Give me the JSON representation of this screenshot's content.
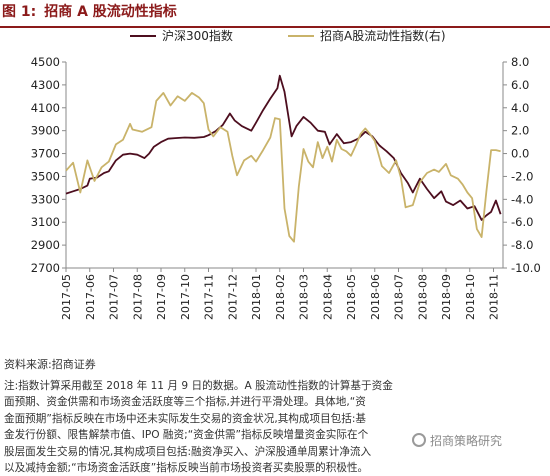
{
  "figure_label": "图 1:",
  "figure_title": "招商 A 股流动性指标",
  "source": "资料来源:招商证券",
  "note_lines": [
    "注:指数计算采用截至 2018 年 11 月 9 日的数据。A 股流动性指数的计算基于资金",
    "面预期、资金供需和市场资金活跃度等三个指标,并进行平滑处理。具体地,“资",
    "金面预期”指标反映在市场中还未实际发生交易的资金状况,其构成项目包括:基",
    "金发行份额、限售解禁市值、IPO 融资;“资金供需”指标反映增量资金实际在个",
    "股层面发生交易的情况,其构成项目包括:融资净买入、沪深股通单周累计净流入",
    "以及减持金额;“市场资金活跃度”指标反映当前市场投资者买卖股票的积极性。"
  ],
  "watermark": "招商策略研究",
  "chart_data": {
    "type": "line",
    "legend_placement": "top",
    "grid": false,
    "x_categories": [
      "2017-05",
      "2017-06",
      "2017-07",
      "2017-08",
      "2017-09",
      "2017-10",
      "2017-11",
      "2017-12",
      "2018-01",
      "2018-02",
      "2018-03",
      "2018-04",
      "2018-05",
      "2018-06",
      "2018-07",
      "2018-08",
      "2018-09",
      "2018-10",
      "2018-11"
    ],
    "x_domain": [
      0,
      18.4
    ],
    "y_left": {
      "ticks": [
        2700,
        2900,
        3100,
        3300,
        3500,
        3700,
        3900,
        4100,
        4300,
        4500
      ],
      "range": [
        2700,
        4500
      ]
    },
    "y_right": {
      "ticks": [
        "8.0",
        "6.0",
        "4.0",
        "2.0",
        "0.0",
        "-2.0",
        "-4.0",
        "-6.0",
        "-8.0",
        "-10.0"
      ],
      "range": [
        -10,
        8
      ]
    },
    "series": [
      {
        "name": "沪深300指数",
        "axis": "left",
        "color": "#4d0e1f",
        "points": [
          [
            0,
            3350
          ],
          [
            0.3,
            3370
          ],
          [
            0.6,
            3390
          ],
          [
            0.9,
            3420
          ],
          [
            1.0,
            3480
          ],
          [
            1.3,
            3490
          ],
          [
            1.6,
            3530
          ],
          [
            1.8,
            3545
          ],
          [
            2.1,
            3640
          ],
          [
            2.4,
            3690
          ],
          [
            2.7,
            3700
          ],
          [
            3.0,
            3690
          ],
          [
            3.3,
            3660
          ],
          [
            3.5,
            3700
          ],
          [
            3.7,
            3760
          ],
          [
            4.0,
            3800
          ],
          [
            4.3,
            3830
          ],
          [
            4.6,
            3835
          ],
          [
            5.0,
            3840
          ],
          [
            5.4,
            3838
          ],
          [
            5.8,
            3845
          ],
          [
            6.0,
            3860
          ],
          [
            6.3,
            3895
          ],
          [
            6.6,
            3950
          ],
          [
            6.9,
            4050
          ],
          [
            7.1,
            3990
          ],
          [
            7.4,
            3940
          ],
          [
            7.8,
            3900
          ],
          [
            8.0,
            3970
          ],
          [
            8.3,
            4080
          ],
          [
            8.6,
            4180
          ],
          [
            8.9,
            4270
          ],
          [
            9.0,
            4380
          ],
          [
            9.2,
            4240
          ],
          [
            9.5,
            3850
          ],
          [
            9.7,
            3940
          ],
          [
            10.0,
            4020
          ],
          [
            10.3,
            3970
          ],
          [
            10.6,
            3900
          ],
          [
            10.9,
            3890
          ],
          [
            11.1,
            3780
          ],
          [
            11.4,
            3870
          ],
          [
            11.7,
            3790
          ],
          [
            12.0,
            3800
          ],
          [
            12.3,
            3830
          ],
          [
            12.6,
            3890
          ],
          [
            12.9,
            3850
          ],
          [
            13.2,
            3770
          ],
          [
            13.5,
            3720
          ],
          [
            13.8,
            3660
          ],
          [
            14.1,
            3530
          ],
          [
            14.4,
            3440
          ],
          [
            14.6,
            3360
          ],
          [
            14.9,
            3480
          ],
          [
            15.2,
            3390
          ],
          [
            15.5,
            3310
          ],
          [
            15.8,
            3370
          ],
          [
            16.0,
            3280
          ],
          [
            16.3,
            3250
          ],
          [
            16.6,
            3290
          ],
          [
            16.9,
            3220
          ],
          [
            17.2,
            3240
          ],
          [
            17.5,
            3120
          ],
          [
            17.7,
            3160
          ],
          [
            17.9,
            3190
          ],
          [
            18.1,
            3290
          ],
          [
            18.3,
            3170
          ]
        ]
      },
      {
        "name": "招商A股流动性指数(右)",
        "axis": "right",
        "color": "#c9b36a",
        "points": [
          [
            0,
            -1.5
          ],
          [
            0.3,
            -0.8
          ],
          [
            0.6,
            -3.4
          ],
          [
            0.9,
            -0.6
          ],
          [
            1.2,
            -2.4
          ],
          [
            1.5,
            -1.2
          ],
          [
            1.8,
            -0.7
          ],
          [
            2.1,
            0.8
          ],
          [
            2.4,
            1.2
          ],
          [
            2.7,
            2.6
          ],
          [
            2.8,
            2.1
          ],
          [
            3.2,
            1.9
          ],
          [
            3.6,
            2.3
          ],
          [
            3.8,
            4.6
          ],
          [
            4.1,
            5.3
          ],
          [
            4.4,
            4.2
          ],
          [
            4.7,
            5.0
          ],
          [
            5.0,
            4.6
          ],
          [
            5.3,
            5.3
          ],
          [
            5.6,
            4.9
          ],
          [
            5.8,
            4.4
          ],
          [
            6.0,
            2.1
          ],
          [
            6.2,
            1.5
          ],
          [
            6.5,
            2.3
          ],
          [
            6.8,
            1.9
          ],
          [
            7.0,
            -0.2
          ],
          [
            7.2,
            -1.9
          ],
          [
            7.5,
            -0.6
          ],
          [
            7.8,
            -0.2
          ],
          [
            8.0,
            -0.7
          ],
          [
            8.3,
            0.3
          ],
          [
            8.6,
            1.4
          ],
          [
            8.8,
            3.1
          ],
          [
            9.0,
            3.0
          ],
          [
            9.2,
            -4.8
          ],
          [
            9.4,
            -7.2
          ],
          [
            9.6,
            -7.7
          ],
          [
            9.8,
            -2.9
          ],
          [
            10.0,
            0.4
          ],
          [
            10.2,
            -0.7
          ],
          [
            10.4,
            -1.2
          ],
          [
            10.6,
            1.0
          ],
          [
            10.8,
            -0.4
          ],
          [
            11.0,
            0.6
          ],
          [
            11.2,
            -0.7
          ],
          [
            11.4,
            1.2
          ],
          [
            11.6,
            0.4
          ],
          [
            11.8,
            0.2
          ],
          [
            12.0,
            -0.2
          ],
          [
            12.2,
            0.7
          ],
          [
            12.4,
            1.7
          ],
          [
            12.6,
            2.2
          ],
          [
            12.8,
            1.7
          ],
          [
            13.0,
            1.1
          ],
          [
            13.3,
            -1.1
          ],
          [
            13.6,
            -1.7
          ],
          [
            13.9,
            -0.6
          ],
          [
            14.1,
            -2.1
          ],
          [
            14.3,
            -4.7
          ],
          [
            14.6,
            -4.5
          ],
          [
            14.9,
            -2.5
          ],
          [
            15.2,
            -1.7
          ],
          [
            15.5,
            -1.4
          ],
          [
            15.7,
            -1.6
          ],
          [
            16.0,
            -0.9
          ],
          [
            16.2,
            -1.9
          ],
          [
            16.5,
            -2.2
          ],
          [
            16.7,
            -2.7
          ],
          [
            16.9,
            -3.4
          ],
          [
            17.1,
            -3.9
          ],
          [
            17.3,
            -6.6
          ],
          [
            17.5,
            -7.3
          ],
          [
            17.7,
            -3.3
          ],
          [
            17.9,
            0.3
          ],
          [
            18.1,
            0.3
          ],
          [
            18.3,
            0.2
          ]
        ]
      }
    ]
  }
}
